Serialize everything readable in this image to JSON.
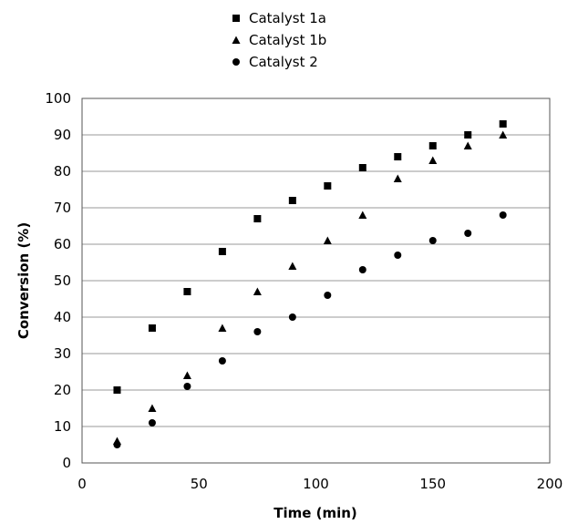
{
  "chart_data": {
    "type": "scatter",
    "xlabel": "Time (min)",
    "ylabel": "Conversion (%)",
    "xlim": [
      0,
      200
    ],
    "ylim": [
      0,
      100
    ],
    "xticks": [
      0,
      50,
      100,
      150,
      200
    ],
    "yticks": [
      0,
      10,
      20,
      30,
      40,
      50,
      60,
      70,
      80,
      90,
      100
    ],
    "grid": "horizontal",
    "legend_position": "top-center",
    "series": [
      {
        "name": "Catalyst 1a",
        "marker": "square",
        "color": "#000000",
        "points": [
          [
            15,
            20
          ],
          [
            30,
            37
          ],
          [
            45,
            47
          ],
          [
            60,
            58
          ],
          [
            75,
            67
          ],
          [
            90,
            72
          ],
          [
            105,
            76
          ],
          [
            120,
            81
          ],
          [
            135,
            84
          ],
          [
            150,
            87
          ],
          [
            165,
            90
          ],
          [
            180,
            93
          ]
        ]
      },
      {
        "name": "Catalyst 1b",
        "marker": "triangle",
        "color": "#000000",
        "points": [
          [
            15,
            6
          ],
          [
            30,
            15
          ],
          [
            45,
            24
          ],
          [
            60,
            37
          ],
          [
            75,
            47
          ],
          [
            90,
            54
          ],
          [
            105,
            61
          ],
          [
            120,
            68
          ],
          [
            135,
            78
          ],
          [
            150,
            83
          ],
          [
            165,
            87
          ],
          [
            180,
            90
          ]
        ]
      },
      {
        "name": "Catalyst 2",
        "marker": "circle",
        "color": "#000000",
        "points": [
          [
            15,
            5
          ],
          [
            30,
            11
          ],
          [
            45,
            21
          ],
          [
            60,
            28
          ],
          [
            75,
            36
          ],
          [
            90,
            40
          ],
          [
            105,
            46
          ],
          [
            120,
            53
          ],
          [
            135,
            57
          ],
          [
            150,
            61
          ],
          [
            165,
            63
          ],
          [
            180,
            68
          ]
        ]
      }
    ]
  }
}
